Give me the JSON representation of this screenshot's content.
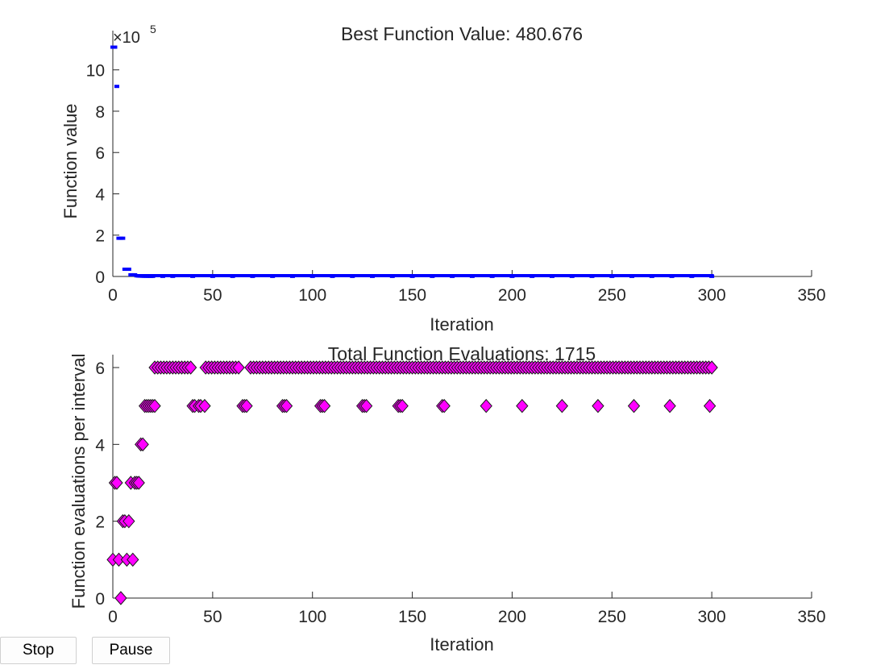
{
  "buttons": {
    "stop_label": "Stop",
    "pause_label": "Pause"
  },
  "chart_data": [
    {
      "type": "scatter",
      "title": "Best Function Value: 480.676",
      "xlabel": "Iteration",
      "ylabel": "Function value",
      "exponent_label": "×10",
      "exponent_power": "5",
      "xlim": [
        0,
        350
      ],
      "ylim": [
        0,
        11
      ],
      "xticks": [
        0,
        50,
        100,
        150,
        200,
        250,
        300,
        350
      ],
      "yticks": [
        0,
        2,
        4,
        6,
        8,
        10
      ],
      "grid": false,
      "marker": "square",
      "color": "#0000ff",
      "series": [
        {
          "x": [
            0,
            1,
            2,
            3,
            4,
            5,
            6,
            7,
            8,
            9,
            10,
            11,
            12,
            13,
            14,
            15,
            16,
            17,
            18,
            19,
            20,
            25,
            30,
            40,
            50,
            60,
            70,
            80,
            90,
            100,
            110,
            120,
            130,
            140,
            150,
            160,
            170,
            180,
            190,
            200,
            210,
            220,
            230,
            240,
            250,
            260,
            270,
            280,
            290,
            300
          ],
          "y": [
            11.1,
            11.1,
            9.2,
            1.85,
            1.85,
            1.85,
            0.35,
            0.35,
            0.35,
            0.08,
            0.08,
            0.08,
            0.03,
            0.02,
            0.015,
            0.012,
            0.01,
            0.01,
            0.008,
            0.007,
            0.006,
            0.006,
            0.006,
            0.005,
            0.005,
            0.005,
            0.005,
            0.005,
            0.005,
            0.005,
            0.005,
            0.005,
            0.005,
            0.005,
            0.005,
            0.005,
            0.005,
            0.005,
            0.005,
            0.005,
            0.005,
            0.005,
            0.005,
            0.005,
            0.005,
            0.005,
            0.005,
            0.005,
            0.005,
            0.005
          ]
        }
      ]
    },
    {
      "type": "scatter",
      "title": "Total Function Evaluations: 1715",
      "xlabel": "Iteration",
      "ylabel": "Function evaluations per interval",
      "xlim": [
        0,
        350
      ],
      "ylim": [
        0,
        6
      ],
      "xticks": [
        0,
        50,
        100,
        150,
        200,
        250,
        300,
        350
      ],
      "yticks": [
        0,
        2,
        4,
        6
      ],
      "grid": false,
      "marker": "diamond",
      "color": "#ff00ff",
      "series": [
        {
          "x": [
            0,
            1,
            2,
            3,
            4,
            5,
            6,
            7,
            8,
            9,
            10,
            11,
            12,
            13,
            14,
            15,
            16,
            17,
            18,
            19,
            20,
            21,
            40,
            41,
            43,
            44,
            46,
            65,
            66,
            67,
            85,
            86,
            87,
            104,
            105,
            106,
            125,
            126,
            127,
            143,
            144,
            145,
            165,
            166,
            187,
            205,
            225,
            243,
            261,
            279,
            299
          ],
          "y": [
            1,
            3,
            3,
            1,
            0,
            2,
            2,
            1,
            2,
            3,
            1,
            3,
            3,
            3,
            4,
            4,
            5,
            5,
            5,
            5,
            5,
            5,
            5,
            5,
            5,
            5,
            5,
            5,
            5,
            5,
            5,
            5,
            5,
            5,
            5,
            5,
            5,
            5,
            5,
            5,
            5,
            5,
            5,
            5,
            5,
            5,
            5,
            5,
            5,
            5,
            5
          ],
          "dense_six_from": 21,
          "dense_six_to": 301
        }
      ]
    }
  ]
}
